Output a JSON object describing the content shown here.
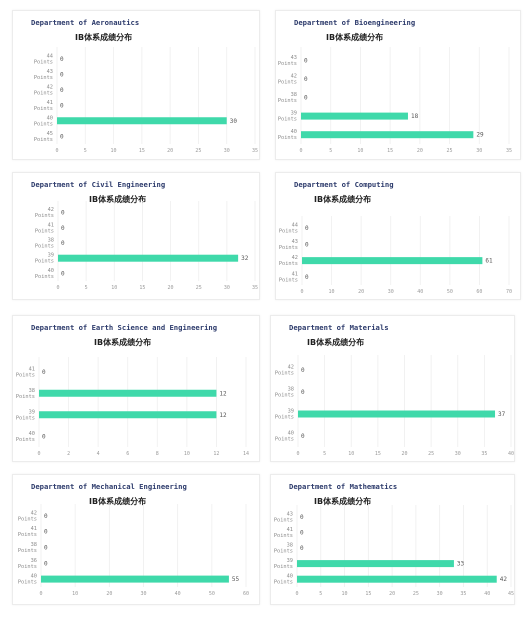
{
  "bar_color": "#3fd9aa",
  "grid_color": "#eeeeee",
  "charts": [
    {
      "title": "Department of Aeronautics",
      "subtitle": "IB体系成绩分布",
      "chart_data": {
        "type": "bar",
        "orientation": "horizontal",
        "categories": [
          "44 Points",
          "43 Points",
          "42 Points",
          "41 Points",
          "40 Points",
          "45 Points"
        ],
        "values": [
          0,
          0,
          0,
          0,
          30,
          0
        ],
        "xticks": [
          0,
          5,
          10,
          15,
          20,
          25,
          30,
          35
        ],
        "xlim": [
          0,
          35
        ]
      }
    },
    {
      "title": "Department of Bioengineering",
      "subtitle": "IB体系成绩分布",
      "chart_data": {
        "type": "bar",
        "orientation": "horizontal",
        "categories": [
          "43 Points",
          "42 Points",
          "38 Points",
          "39 Points",
          "40 Points"
        ],
        "values": [
          0,
          0,
          0,
          18,
          29
        ],
        "xticks": [
          0,
          5,
          10,
          15,
          20,
          25,
          30,
          35
        ],
        "xlim": [
          0,
          35
        ]
      }
    },
    {
      "title": "Department of Civil Engineering",
      "subtitle": "IB体系成绩分布",
      "chart_data": {
        "type": "bar",
        "orientation": "horizontal",
        "categories": [
          "42 Points",
          "41 Points",
          "38 Points",
          "39 Points",
          "40 Points"
        ],
        "values": [
          0,
          0,
          0,
          32,
          0
        ],
        "xticks": [
          0,
          5,
          10,
          15,
          20,
          25,
          30,
          35
        ],
        "xlim": [
          0,
          35
        ]
      }
    },
    {
      "title": "Department of Computing",
      "subtitle": "IB体系成绩分布",
      "chart_data": {
        "type": "bar",
        "orientation": "horizontal",
        "categories": [
          "44 Points",
          "43 Points",
          "42 Points",
          "41 Points"
        ],
        "values": [
          0,
          0,
          61,
          0
        ],
        "xticks": [
          0,
          10,
          20,
          30,
          40,
          50,
          60,
          70
        ],
        "xlim": [
          0,
          70
        ]
      }
    },
    {
      "title": "Department of Earth Science and Engineering",
      "subtitle": "IB体系成绩分布",
      "chart_data": {
        "type": "bar",
        "orientation": "horizontal",
        "categories": [
          "41 Points",
          "38 Points",
          "39 Points",
          "40 Points"
        ],
        "values": [
          0,
          12,
          12,
          0
        ],
        "xticks": [
          0,
          2,
          4,
          6,
          8,
          10,
          12,
          14
        ],
        "xlim": [
          0,
          14
        ]
      }
    },
    {
      "title": "Department of Materials",
      "subtitle": "IB体系成绩分布",
      "chart_data": {
        "type": "bar",
        "orientation": "horizontal",
        "categories": [
          "42 Points",
          "38 Points",
          "39 Points",
          "40 Points"
        ],
        "values": [
          0,
          0,
          37,
          0
        ],
        "xticks": [
          0,
          5,
          10,
          15,
          20,
          25,
          30,
          35,
          40
        ],
        "xlim": [
          0,
          40
        ]
      }
    },
    {
      "title": "Department of Mechanical Engineering",
      "subtitle": "IB体系成绩分布",
      "chart_data": {
        "type": "bar",
        "orientation": "horizontal",
        "categories": [
          "42 Points",
          "41 Points",
          "38 Points",
          "36 Points",
          "40 Points"
        ],
        "values": [
          0,
          0,
          0,
          0,
          55
        ],
        "xticks": [
          0,
          10,
          20,
          30,
          40,
          50,
          60
        ],
        "xlim": [
          0,
          60
        ]
      }
    },
    {
      "title": "Department of Mathematics",
      "subtitle": "IB体系成绩分布",
      "chart_data": {
        "type": "bar",
        "orientation": "horizontal",
        "categories": [
          "43 Points",
          "41 Points",
          "38 Points",
          "39 Points",
          "40 Points"
        ],
        "values": [
          0,
          0,
          0,
          33,
          42
        ],
        "xticks": [
          0,
          5,
          10,
          15,
          20,
          25,
          30,
          35,
          40,
          45
        ],
        "xlim": [
          0,
          45
        ]
      }
    }
  ]
}
